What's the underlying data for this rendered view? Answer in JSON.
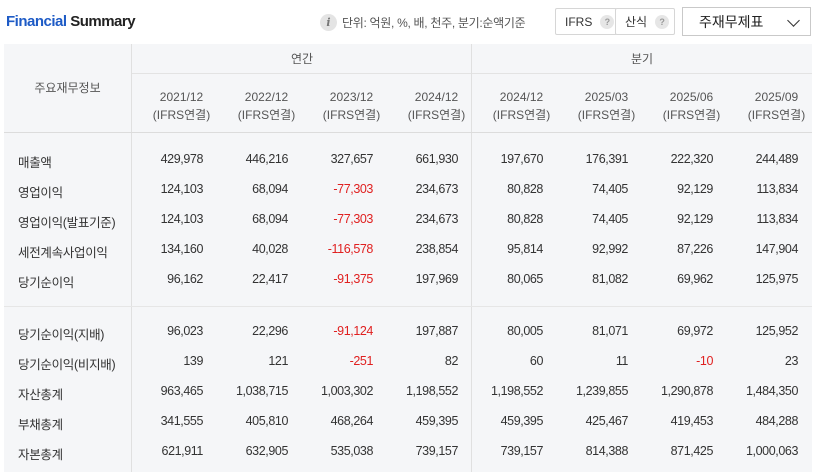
{
  "header": {
    "title_a": "Financial",
    "title_b": " Summary",
    "unit_text": "단위: 억원, %, 배, 천주, 분기:순액기준",
    "filter_ifrs": "IFRS",
    "filter_calc": "산식",
    "help_glyph": "?",
    "info_glyph": "i",
    "statement_select": "주재무제표"
  },
  "table": {
    "row_header": "주요재무정보",
    "group_annual": "연간",
    "group_quarter": "분기",
    "columns": [
      {
        "period": "2021/12",
        "basis": "(IFRS연결)"
      },
      {
        "period": "2022/12",
        "basis": "(IFRS연결)"
      },
      {
        "period": "2023/12",
        "basis": "(IFRS연결)"
      },
      {
        "period": "2024/12",
        "basis": "(IFRS연결)"
      },
      {
        "period": "2024/12",
        "basis": "(IFRS연결)"
      },
      {
        "period": "2025/03",
        "basis": "(IFRS연결)"
      },
      {
        "period": "2025/06",
        "basis": "(IFRS연결)"
      },
      {
        "period": "2025/09",
        "basis": "(IFRS연결)"
      }
    ],
    "rows": [
      {
        "name": "매출액",
        "values": [
          "429,978",
          "446,216",
          "327,657",
          "661,930",
          "197,670",
          "176,391",
          "222,320",
          "244,489"
        ]
      },
      {
        "name": "영업이익",
        "values": [
          "124,103",
          "68,094",
          "-77,303",
          "234,673",
          "80,828",
          "74,405",
          "92,129",
          "113,834"
        ]
      },
      {
        "name": "영업이익(발표기준)",
        "values": [
          "124,103",
          "68,094",
          "-77,303",
          "234,673",
          "80,828",
          "74,405",
          "92,129",
          "113,834"
        ]
      },
      {
        "name": "세전계속사업이익",
        "values": [
          "134,160",
          "40,028",
          "-116,578",
          "238,854",
          "95,814",
          "92,992",
          "87,226",
          "147,904"
        ]
      },
      {
        "name": "당기순이익",
        "values": [
          "96,162",
          "22,417",
          "-91,375",
          "197,969",
          "80,065",
          "81,082",
          "69,962",
          "125,975"
        ]
      },
      {
        "name": "당기순이익(지배)",
        "values": [
          "96,023",
          "22,296",
          "-91,124",
          "197,887",
          "80,005",
          "81,071",
          "69,972",
          "125,952"
        ]
      },
      {
        "name": "당기순이익(비지배)",
        "values": [
          "139",
          "121",
          "-251",
          "82",
          "60",
          "11",
          "-10",
          "23"
        ]
      },
      {
        "name": "자산총계",
        "values": [
          "963,465",
          "1,038,715",
          "1,003,302",
          "1,198,552",
          "1,198,552",
          "1,239,855",
          "1,290,878",
          "1,484,350"
        ]
      },
      {
        "name": "부채총계",
        "values": [
          "341,555",
          "405,810",
          "468,264",
          "459,395",
          "459,395",
          "425,467",
          "419,453",
          "484,288"
        ]
      },
      {
        "name": "자본총계",
        "values": [
          "621,911",
          "632,905",
          "535,038",
          "739,157",
          "739,157",
          "814,388",
          "871,425",
          "1,000,063"
        ]
      }
    ]
  }
}
